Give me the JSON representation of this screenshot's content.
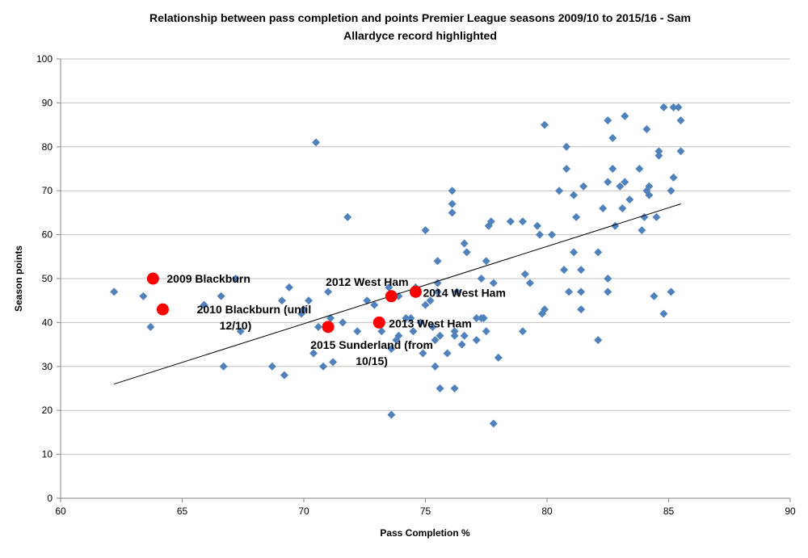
{
  "chart_data": {
    "type": "scatter",
    "title": [
      "Relationship between pass completion and points Premier League seasons 2009/10 to 2015/16 - Sam",
      "Allardyce record highlighted"
    ],
    "xlabel": "Pass Completion %",
    "ylabel": "Season points",
    "xlim": [
      60,
      90
    ],
    "ylim": [
      0,
      100
    ],
    "x_ticks": [
      "60",
      "65",
      "70",
      "75",
      "80",
      "85",
      "90"
    ],
    "y_ticks": [
      "0",
      "10",
      "20",
      "30",
      "40",
      "50",
      "60",
      "70",
      "80",
      "90",
      "100"
    ],
    "grid": "horizontal",
    "legend": "none",
    "colors": {
      "points": "#4F81BD",
      "highlight": "#FF0000",
      "trendline": "#000000",
      "grid": "#C0C0C0"
    },
    "points": [
      [
        62.2,
        47
      ],
      [
        63.4,
        46
      ],
      [
        63.7,
        39
      ],
      [
        65.9,
        44
      ],
      [
        66.6,
        46
      ],
      [
        66.7,
        30
      ],
      [
        67.2,
        50
      ],
      [
        67.4,
        38
      ],
      [
        68.7,
        30
      ],
      [
        69.1,
        45
      ],
      [
        69.2,
        28
      ],
      [
        69.4,
        48
      ],
      [
        69.9,
        42
      ],
      [
        70.0,
        43
      ],
      [
        70.2,
        45
      ],
      [
        70.4,
        33
      ],
      [
        70.5,
        81
      ],
      [
        70.6,
        39
      ],
      [
        70.8,
        30
      ],
      [
        71.0,
        47
      ],
      [
        71.1,
        41
      ],
      [
        71.2,
        31
      ],
      [
        71.6,
        40
      ],
      [
        71.8,
        64
      ],
      [
        72.2,
        38
      ],
      [
        72.6,
        45
      ],
      [
        72.9,
        44
      ],
      [
        73.2,
        38
      ],
      [
        73.5,
        48
      ],
      [
        73.6,
        34
      ],
      [
        73.7,
        46
      ],
      [
        73.8,
        36
      ],
      [
        73.9,
        37
      ],
      [
        73.6,
        19
      ],
      [
        73.9,
        46
      ],
      [
        74.2,
        41
      ],
      [
        74.4,
        41
      ],
      [
        74.5,
        38
      ],
      [
        74.6,
        48
      ],
      [
        74.8,
        40
      ],
      [
        74.9,
        33
      ],
      [
        75.0,
        61
      ],
      [
        75.0,
        44
      ],
      [
        75.2,
        45
      ],
      [
        75.3,
        39
      ],
      [
        75.4,
        36
      ],
      [
        75.4,
        30
      ],
      [
        75.5,
        54
      ],
      [
        75.5,
        49
      ],
      [
        75.5,
        47
      ],
      [
        75.6,
        25
      ],
      [
        75.6,
        37
      ],
      [
        75.9,
        33
      ],
      [
        76.1,
        70
      ],
      [
        76.1,
        67
      ],
      [
        76.1,
        65
      ],
      [
        76.2,
        38
      ],
      [
        76.2,
        37
      ],
      [
        76.2,
        25
      ],
      [
        76.3,
        47
      ],
      [
        76.5,
        35
      ],
      [
        76.6,
        58
      ],
      [
        76.7,
        56
      ],
      [
        76.6,
        37
      ],
      [
        77.1,
        41
      ],
      [
        77.1,
        36
      ],
      [
        77.3,
        41
      ],
      [
        77.3,
        50
      ],
      [
        77.4,
        41
      ],
      [
        77.5,
        54
      ],
      [
        77.5,
        38
      ],
      [
        77.6,
        62
      ],
      [
        77.7,
        63
      ],
      [
        77.8,
        49
      ],
      [
        77.8,
        17
      ],
      [
        78.0,
        32
      ],
      [
        78.5,
        63
      ],
      [
        79.0,
        63
      ],
      [
        79.0,
        38
      ],
      [
        79.1,
        51
      ],
      [
        79.3,
        49
      ],
      [
        79.6,
        62
      ],
      [
        79.7,
        60
      ],
      [
        79.8,
        42
      ],
      [
        79.9,
        43
      ],
      [
        79.9,
        85
      ],
      [
        80.2,
        60
      ],
      [
        80.5,
        70
      ],
      [
        80.7,
        52
      ],
      [
        80.8,
        75
      ],
      [
        80.8,
        80
      ],
      [
        80.9,
        47
      ],
      [
        81.1,
        69
      ],
      [
        81.1,
        56
      ],
      [
        81.2,
        64
      ],
      [
        81.4,
        52
      ],
      [
        81.4,
        47
      ],
      [
        81.4,
        43
      ],
      [
        81.5,
        71
      ],
      [
        82.1,
        56
      ],
      [
        82.1,
        36
      ],
      [
        82.3,
        66
      ],
      [
        82.5,
        72
      ],
      [
        82.5,
        86
      ],
      [
        82.5,
        50
      ],
      [
        82.5,
        47
      ],
      [
        82.7,
        82
      ],
      [
        82.7,
        75
      ],
      [
        82.8,
        62
      ],
      [
        83.0,
        71
      ],
      [
        83.1,
        66
      ],
      [
        83.2,
        72
      ],
      [
        83.2,
        87
      ],
      [
        83.4,
        68
      ],
      [
        83.8,
        75
      ],
      [
        83.9,
        61
      ],
      [
        84.0,
        64
      ],
      [
        84.1,
        84
      ],
      [
        84.1,
        70
      ],
      [
        84.2,
        71
      ],
      [
        84.2,
        69
      ],
      [
        84.4,
        46
      ],
      [
        84.5,
        64
      ],
      [
        84.6,
        79
      ],
      [
        84.6,
        78
      ],
      [
        84.8,
        89
      ],
      [
        84.8,
        42
      ],
      [
        85.1,
        70
      ],
      [
        85.1,
        47
      ],
      [
        85.2,
        89
      ],
      [
        85.2,
        73
      ],
      [
        85.4,
        89
      ],
      [
        85.5,
        86
      ],
      [
        85.5,
        79
      ]
    ],
    "highlighted": [
      {
        "label": [
          "2009 Blackburn"
        ],
        "x": 63.8,
        "y": 50
      },
      {
        "label": [
          "2010 Blackburn (until",
          "12/10)"
        ],
        "x": 64.2,
        "y": 43
      },
      {
        "label": [
          "2012 West Ham"
        ],
        "x": 73.6,
        "y": 46
      },
      {
        "label": [
          "2013 West Ham"
        ],
        "x": 73.1,
        "y": 40
      },
      {
        "label": [
          "2014 West Ham"
        ],
        "x": 74.6,
        "y": 47
      },
      {
        "label": [
          "2015 Sunderland (from",
          "10/15)"
        ],
        "x": 71.0,
        "y": 39
      }
    ],
    "trendline": {
      "type": "linear",
      "from": [
        62.2,
        26
      ],
      "to": [
        85.5,
        67
      ]
    }
  }
}
